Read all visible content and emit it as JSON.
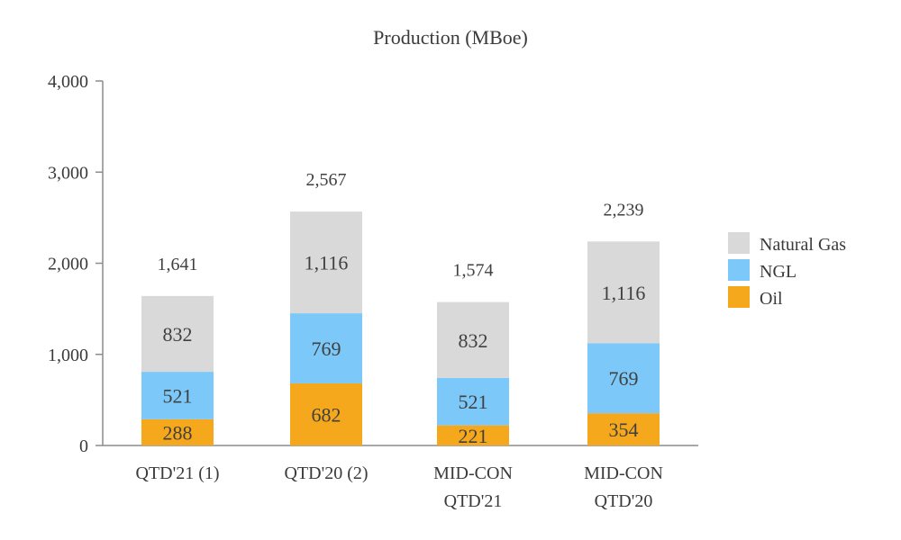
{
  "chart_data": {
    "type": "bar",
    "stacked": true,
    "title": "Production (MBoe)",
    "categories": [
      [
        "QTD'21 (1)"
      ],
      [
        "QTD'20 (2)"
      ],
      [
        "MID-CON",
        "QTD'21"
      ],
      [
        "MID-CON",
        "QTD'20"
      ]
    ],
    "series": [
      {
        "name": "Oil",
        "values": [
          288,
          682,
          221,
          354
        ],
        "labels": [
          "288",
          "682",
          "221",
          "354"
        ],
        "color": "#F5A81C"
      },
      {
        "name": "NGL",
        "values": [
          521,
          769,
          521,
          769
        ],
        "labels": [
          "521",
          "769",
          "521",
          "769"
        ],
        "color": "#7CC8F8"
      },
      {
        "name": "Natural Gas",
        "values": [
          832,
          1116,
          832,
          1116
        ],
        "labels": [
          "832",
          "1,116",
          "832",
          "1,116"
        ],
        "color": "#D9D9D9"
      }
    ],
    "totals": [
      "1,641",
      "2,567",
      "1,574",
      "2,239"
    ],
    "total_values": [
      1641,
      2567,
      1574,
      2239
    ],
    "ylim": [
      0,
      4000
    ],
    "yticks": [
      0,
      1000,
      2000,
      3000,
      4000
    ],
    "ytick_labels": [
      "0",
      "1,000",
      "2,000",
      "3,000",
      "4,000"
    ],
    "legend": [
      "Natural Gas",
      "NGL",
      "Oil"
    ],
    "legend_position": "right",
    "xlabel": "",
    "ylabel": ""
  }
}
